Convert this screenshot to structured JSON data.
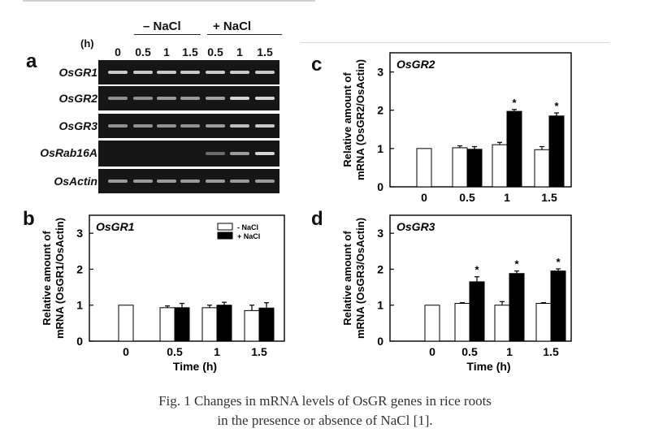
{
  "gel": {
    "h_label": "(h)",
    "groups": [
      "– NaCl",
      "+ NaCl"
    ],
    "times": [
      "0",
      "0.5",
      "1",
      "1.5",
      "0.5",
      "1",
      "1.5"
    ],
    "genes": [
      "OsGR1",
      "OsGR2",
      "OsGR3",
      "OsRab16A",
      "OsActin"
    ],
    "intensity": [
      [
        0.8,
        0.8,
        0.8,
        0.8,
        0.8,
        0.8,
        0.8
      ],
      [
        0.55,
        0.55,
        0.6,
        0.6,
        0.65,
        0.85,
        0.85
      ],
      [
        0.55,
        0.55,
        0.55,
        0.55,
        0.6,
        0.75,
        0.8
      ],
      [
        0,
        0,
        0,
        0,
        0.35,
        0.6,
        0.85
      ],
      [
        0.6,
        0.6,
        0.6,
        0.6,
        0.6,
        0.6,
        0.6
      ]
    ]
  },
  "panel_labels": {
    "a": "a",
    "b": "b",
    "c": "c",
    "d": "d"
  },
  "chart_data": [
    {
      "type": "bar",
      "panel": "b",
      "title": "OsGR1",
      "categories": [
        "0",
        "0.5",
        "1",
        "1.5"
      ],
      "series": [
        {
          "name": "- NaCl",
          "values": [
            1.0,
            0.93,
            0.93,
            0.85
          ],
          "err": [
            0,
            0.05,
            0.07,
            0.15
          ]
        },
        {
          "name": "+ NaCl",
          "values": [
            null,
            0.93,
            1.0,
            0.92
          ],
          "err": [
            0,
            0.12,
            0.08,
            0.15
          ]
        }
      ],
      "sig": [
        false,
        false,
        false,
        false
      ],
      "xlabel": "Time (h)",
      "ylabel_line1": "Relative amount of",
      "ylabel_line2": "mRNA (OsGR1/OsActin)",
      "yticks": [
        "0",
        "1",
        "2",
        "3"
      ],
      "ylim": [
        0,
        3.5
      ],
      "legend": true,
      "legend_position": "top-right"
    },
    {
      "type": "bar",
      "panel": "c",
      "title": "OsGR2",
      "categories": [
        "0",
        "0.5",
        "1",
        "1.5"
      ],
      "series": [
        {
          "name": "- NaCl",
          "values": [
            1.0,
            1.02,
            1.1,
            0.97
          ],
          "err": [
            0,
            0.05,
            0.06,
            0.08
          ]
        },
        {
          "name": "+ NaCl",
          "values": [
            null,
            0.98,
            1.97,
            1.85
          ],
          "err": [
            0,
            0.07,
            0.05,
            0.08
          ]
        }
      ],
      "sig": [
        false,
        false,
        true,
        true
      ],
      "sig_mark": "*",
      "xlabel": "",
      "ylabel_line1": "Relative amount of",
      "ylabel_line2": "mRNA (OsGR2/OsActin)",
      "yticks": [
        "0",
        "1",
        "2",
        "3"
      ],
      "ylim": [
        0,
        3.5
      ],
      "legend": false
    },
    {
      "type": "bar",
      "panel": "d",
      "title": "OsGR3",
      "categories": [
        "0",
        "0.5",
        "1",
        "1.5"
      ],
      "series": [
        {
          "name": "- NaCl",
          "values": [
            1.0,
            1.05,
            1.0,
            1.05
          ],
          "err": [
            0,
            0.02,
            0.1,
            0.02
          ]
        },
        {
          "name": "+ NaCl",
          "values": [
            null,
            1.65,
            1.88,
            1.95
          ],
          "err": [
            0,
            0.14,
            0.07,
            0.06
          ]
        }
      ],
      "sig": [
        false,
        true,
        true,
        true
      ],
      "sig_mark": "*",
      "xlabel": "Time (h)",
      "ylabel_line1": "Relative amount of",
      "ylabel_line2": "mRNA (OsGR3/OsActin)",
      "yticks": [
        "0",
        "1",
        "2",
        "3"
      ],
      "ylim": [
        0,
        3.5
      ],
      "legend": false
    }
  ],
  "caption": {
    "line1": "Fig. 1 Changes in mRNA levels of OsGR genes in rice roots",
    "line2": "in the presence or absence of NaCl [1]."
  }
}
